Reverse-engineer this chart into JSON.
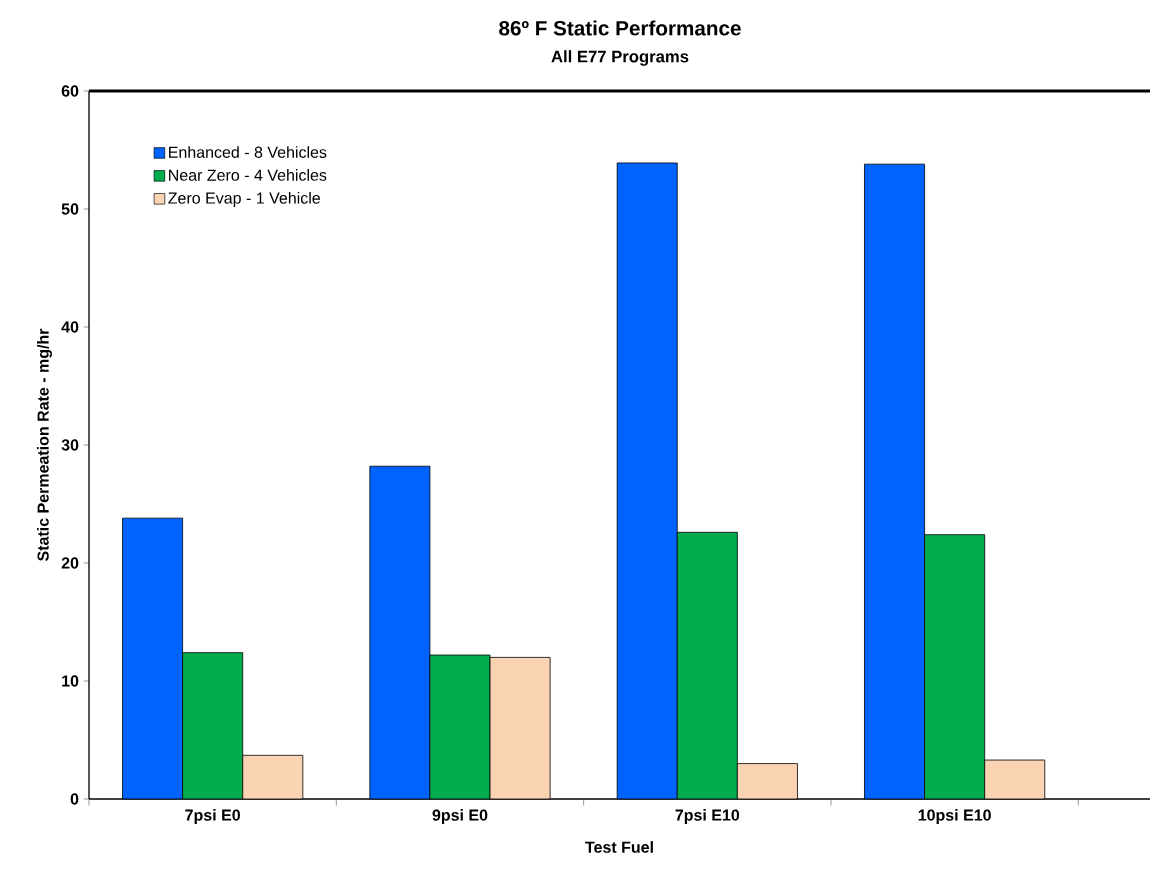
{
  "chart_data": {
    "type": "bar",
    "title": "86º F Static Performance",
    "subtitle": "All E77 Programs",
    "xlabel": "Test Fuel",
    "ylabel": "Static Permeation Rate - mg/hr",
    "categories": [
      "7psi E0",
      "9psi E0",
      "7psi E10",
      "10psi E10"
    ],
    "series": [
      {
        "name": "Enhanced - 8 Vehicles",
        "color": "#0063ff",
        "values": [
          23.8,
          28.2,
          53.9,
          53.8
        ]
      },
      {
        "name": "Near Zero - 4 Vehicles",
        "color": "#00ac4e",
        "values": [
          12.4,
          12.2,
          22.6,
          22.4
        ]
      },
      {
        "name": "Zero Evap - 1 Vehicle",
        "color": "#fad4b2",
        "values": [
          3.7,
          12.0,
          3.0,
          3.3
        ]
      }
    ],
    "ylim": [
      0,
      60
    ],
    "yticks": [
      0,
      10,
      20,
      30,
      40,
      50,
      60
    ],
    "legend": "top left"
  }
}
